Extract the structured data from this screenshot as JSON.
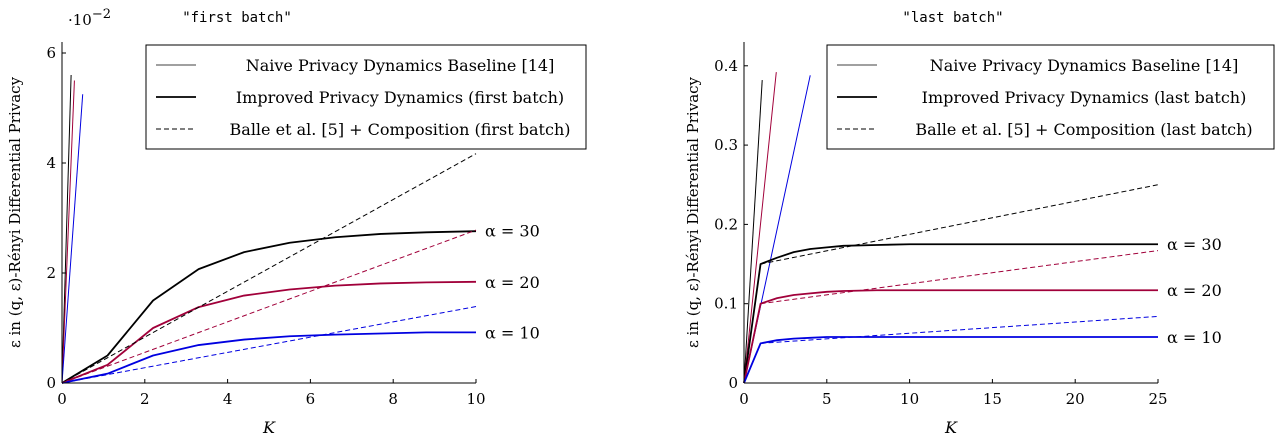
{
  "chart_data": [
    {
      "type": "line",
      "title": "\"first batch\"",
      "xlabel": "K",
      "ylabel": "ε in (q, ε)-Rényi Differential Privacy",
      "y_multiplier_label": "·10",
      "y_multiplier_exp": "−2",
      "xlim": [
        0,
        10
      ],
      "ylim": [
        0,
        6.2
      ],
      "xticks": [
        0,
        2,
        4,
        6,
        8,
        10
      ],
      "xtick_labels": [
        "0",
        "2",
        "4",
        "6",
        "8",
        "10"
      ],
      "yticks": [
        0,
        2,
        4,
        6
      ],
      "ytick_labels": [
        "0",
        "2",
        "4",
        "6"
      ],
      "legend_position": "top-right",
      "legend": [
        {
          "label": "Naive Privacy Dynamics Baseline [14]",
          "style": "thin"
        },
        {
          "label": "Improved Privacy Dynamics (first batch)",
          "style": "thick"
        },
        {
          "label": "Balle et al. [5] + Composition (first batch)",
          "style": "dashed"
        }
      ],
      "alpha_labels": [
        {
          "text": "α = 30",
          "y": 2.77
        },
        {
          "text": "α = 20",
          "y": 1.84
        },
        {
          "text": "α = 10",
          "y": 0.92
        }
      ],
      "series": [
        {
          "group": "naive",
          "alpha": 30,
          "color": "#000000",
          "x": [
            0,
            0.22
          ],
          "y": [
            0,
            5.6
          ]
        },
        {
          "group": "naive",
          "alpha": 20,
          "color": "#a1003a",
          "x": [
            0,
            0.3
          ],
          "y": [
            0,
            5.5
          ]
        },
        {
          "group": "naive",
          "alpha": 10,
          "color": "#0000e0",
          "x": [
            0,
            0.5
          ],
          "y": [
            0,
            5.25
          ]
        },
        {
          "group": "improved",
          "alpha": 30,
          "color": "#000000",
          "x": [
            0,
            1.1,
            2.2,
            3.3,
            4.4,
            5.5,
            6.6,
            7.7,
            8.8,
            10
          ],
          "y": [
            0,
            0.5,
            1.5,
            2.07,
            2.38,
            2.55,
            2.65,
            2.71,
            2.74,
            2.76
          ]
        },
        {
          "group": "improved",
          "alpha": 20,
          "color": "#a1003a",
          "x": [
            0,
            1.1,
            2.2,
            3.3,
            4.4,
            5.5,
            6.6,
            7.7,
            8.8,
            10
          ],
          "y": [
            0,
            0.33,
            1.0,
            1.38,
            1.59,
            1.7,
            1.77,
            1.81,
            1.83,
            1.84
          ]
        },
        {
          "group": "improved",
          "alpha": 10,
          "color": "#0000e0",
          "x": [
            0,
            1.1,
            2.2,
            3.3,
            4.4,
            5.5,
            6.6,
            7.7,
            8.8,
            10
          ],
          "y": [
            0,
            0.17,
            0.5,
            0.69,
            0.79,
            0.85,
            0.88,
            0.9,
            0.92,
            0.92
          ]
        },
        {
          "group": "balle",
          "alpha": 30,
          "color": "#000000",
          "x": [
            0,
            10
          ],
          "y": [
            0,
            4.17
          ]
        },
        {
          "group": "balle",
          "alpha": 20,
          "color": "#a1003a",
          "x": [
            0,
            10
          ],
          "y": [
            0,
            2.78
          ]
        },
        {
          "group": "balle",
          "alpha": 10,
          "color": "#0000e0",
          "x": [
            0,
            10
          ],
          "y": [
            0,
            1.39
          ]
        }
      ]
    },
    {
      "type": "line",
      "title": "\"last batch\"",
      "xlabel": "K",
      "ylabel": "ε in (q, ε)-Rényi Differential Privacy",
      "xlim": [
        0,
        25
      ],
      "ylim": [
        0,
        0.43
      ],
      "xticks": [
        0,
        5,
        10,
        15,
        20,
        25
      ],
      "xtick_labels": [
        "0",
        "5",
        "10",
        "15",
        "20",
        "25"
      ],
      "yticks": [
        0,
        0.1,
        0.2,
        0.3,
        0.4
      ],
      "ytick_labels": [
        "0",
        "0.1",
        "0.2",
        "0.3",
        "0.4"
      ],
      "legend_position": "top-right",
      "legend": [
        {
          "label": "Naive Privacy Dynamics Baseline [14]",
          "style": "thin"
        },
        {
          "label": "Improved Privacy Dynamics (last batch)",
          "style": "thick"
        },
        {
          "label": "Balle et al. [5] + Composition (last batch)",
          "style": "dashed"
        }
      ],
      "alpha_labels": [
        {
          "text": "α = 30",
          "y": 0.175
        },
        {
          "text": "α = 20",
          "y": 0.117
        },
        {
          "text": "α = 10",
          "y": 0.058
        }
      ],
      "series": [
        {
          "group": "naive",
          "alpha": 30,
          "color": "#000000",
          "x": [
            0,
            1.1
          ],
          "y": [
            0,
            0.382
          ]
        },
        {
          "group": "naive",
          "alpha": 20,
          "color": "#a1003a",
          "x": [
            0,
            1.95
          ],
          "y": [
            0,
            0.392
          ]
        },
        {
          "group": "naive",
          "alpha": 10,
          "color": "#0000e0",
          "x": [
            0,
            4.0
          ],
          "y": [
            0,
            0.388
          ]
        },
        {
          "group": "improved",
          "alpha": 30,
          "color": "#000000",
          "x": [
            0,
            1,
            2,
            3,
            4,
            5,
            6,
            8,
            10,
            15,
            20,
            25
          ],
          "y": [
            0,
            0.15,
            0.158,
            0.165,
            0.169,
            0.171,
            0.173,
            0.174,
            0.175,
            0.175,
            0.175,
            0.175
          ]
        },
        {
          "group": "improved",
          "alpha": 20,
          "color": "#a1003a",
          "x": [
            0,
            1,
            2,
            3,
            4,
            5,
            6,
            8,
            10,
            15,
            20,
            25
          ],
          "y": [
            0,
            0.1,
            0.107,
            0.111,
            0.113,
            0.115,
            0.116,
            0.117,
            0.117,
            0.117,
            0.117,
            0.117
          ]
        },
        {
          "group": "improved",
          "alpha": 10,
          "color": "#0000e0",
          "x": [
            0,
            1,
            2,
            3,
            4,
            5,
            6,
            8,
            10,
            15,
            20,
            25
          ],
          "y": [
            0,
            0.05,
            0.054,
            0.056,
            0.057,
            0.058,
            0.058,
            0.058,
            0.058,
            0.058,
            0.058,
            0.058
          ]
        },
        {
          "group": "balle",
          "alpha": 30,
          "color": "#000000",
          "x": [
            1,
            25
          ],
          "y": [
            0.15,
            0.25
          ]
        },
        {
          "group": "balle",
          "alpha": 20,
          "color": "#a1003a",
          "x": [
            1,
            25
          ],
          "y": [
            0.1,
            0.167
          ]
        },
        {
          "group": "balle",
          "alpha": 10,
          "color": "#0000e0",
          "x": [
            1,
            25
          ],
          "y": [
            0.05,
            0.084
          ]
        }
      ]
    }
  ]
}
